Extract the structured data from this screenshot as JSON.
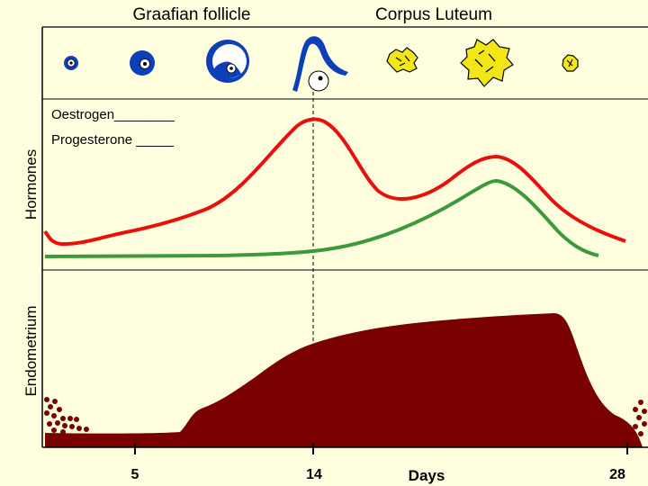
{
  "header": {
    "graafian_label": "Graafian follicle",
    "corpus_label": "Corpus Luteum"
  },
  "legend": {
    "oestrogen": "Oestrogen________",
    "progesterone": "Progesterone _____"
  },
  "axes": {
    "hormones_label": "Hormones",
    "endometrium_label": "Endometrium",
    "days_label": "Days",
    "ticks": [
      "5",
      "14",
      "28"
    ]
  },
  "icons": [
    "follicle-stage-1-icon",
    "follicle-stage-2-icon",
    "follicle-stage-3-icon",
    "ovulation-icon",
    "corpus-luteum-1-icon",
    "corpus-luteum-2-icon",
    "corpus-albicans-icon"
  ],
  "colors": {
    "background": "#ffffe0",
    "oestrogen": "#e8100a",
    "progesterone": "#3c9a3c",
    "endometrium": "#7a0000",
    "follicle": "#0d3fb8",
    "corpus": "#f2e616"
  }
}
